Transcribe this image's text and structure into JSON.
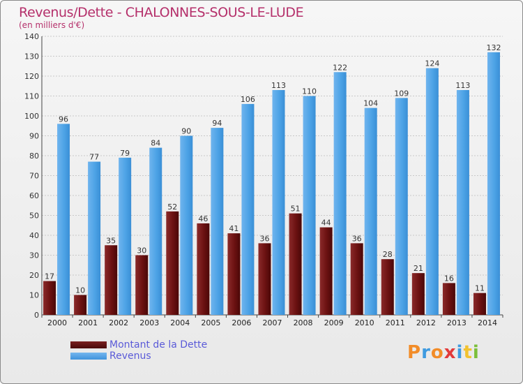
{
  "title": "Revenus/Dette - CHALONNES-SOUS-LE-LUDE",
  "subtitle": "(en milliers d'€)",
  "legend": {
    "debt": "Montant de la Dette",
    "revenue": "Revenus"
  },
  "logo": {
    "text": "Proxiti",
    "letters": [
      "P",
      "r",
      "o",
      "x",
      "i",
      "t",
      "i"
    ],
    "colors": [
      "#f28c28",
      "#3f9be0",
      "#f28c28",
      "#e23a3a",
      "#3f9be0",
      "#f2c230",
      "#7bbf3a"
    ]
  },
  "colors": {
    "title": "#b5306b",
    "debt": "#6b1111",
    "revenue": "#4da3e6",
    "legend_text": "#5a5ad8"
  },
  "chart_data": {
    "type": "bar",
    "categories": [
      "2000",
      "2001",
      "2002",
      "2003",
      "2004",
      "2005",
      "2006",
      "2007",
      "2008",
      "2009",
      "2010",
      "2011",
      "2012",
      "2013",
      "2014"
    ],
    "series": [
      {
        "name": "Montant de la Dette",
        "values": [
          17,
          10,
          35,
          30,
          52,
          46,
          41,
          36,
          51,
          44,
          36,
          28,
          21,
          16,
          11
        ]
      },
      {
        "name": "Revenus",
        "values": [
          96,
          77,
          79,
          84,
          90,
          94,
          106,
          113,
          110,
          122,
          104,
          109,
          124,
          113,
          132
        ]
      }
    ],
    "ylim": [
      0,
      140
    ],
    "yticks": [
      0,
      10,
      20,
      30,
      40,
      50,
      60,
      70,
      80,
      90,
      100,
      110,
      120,
      130,
      140
    ],
    "grid": true,
    "legend_position": "bottom-left"
  }
}
